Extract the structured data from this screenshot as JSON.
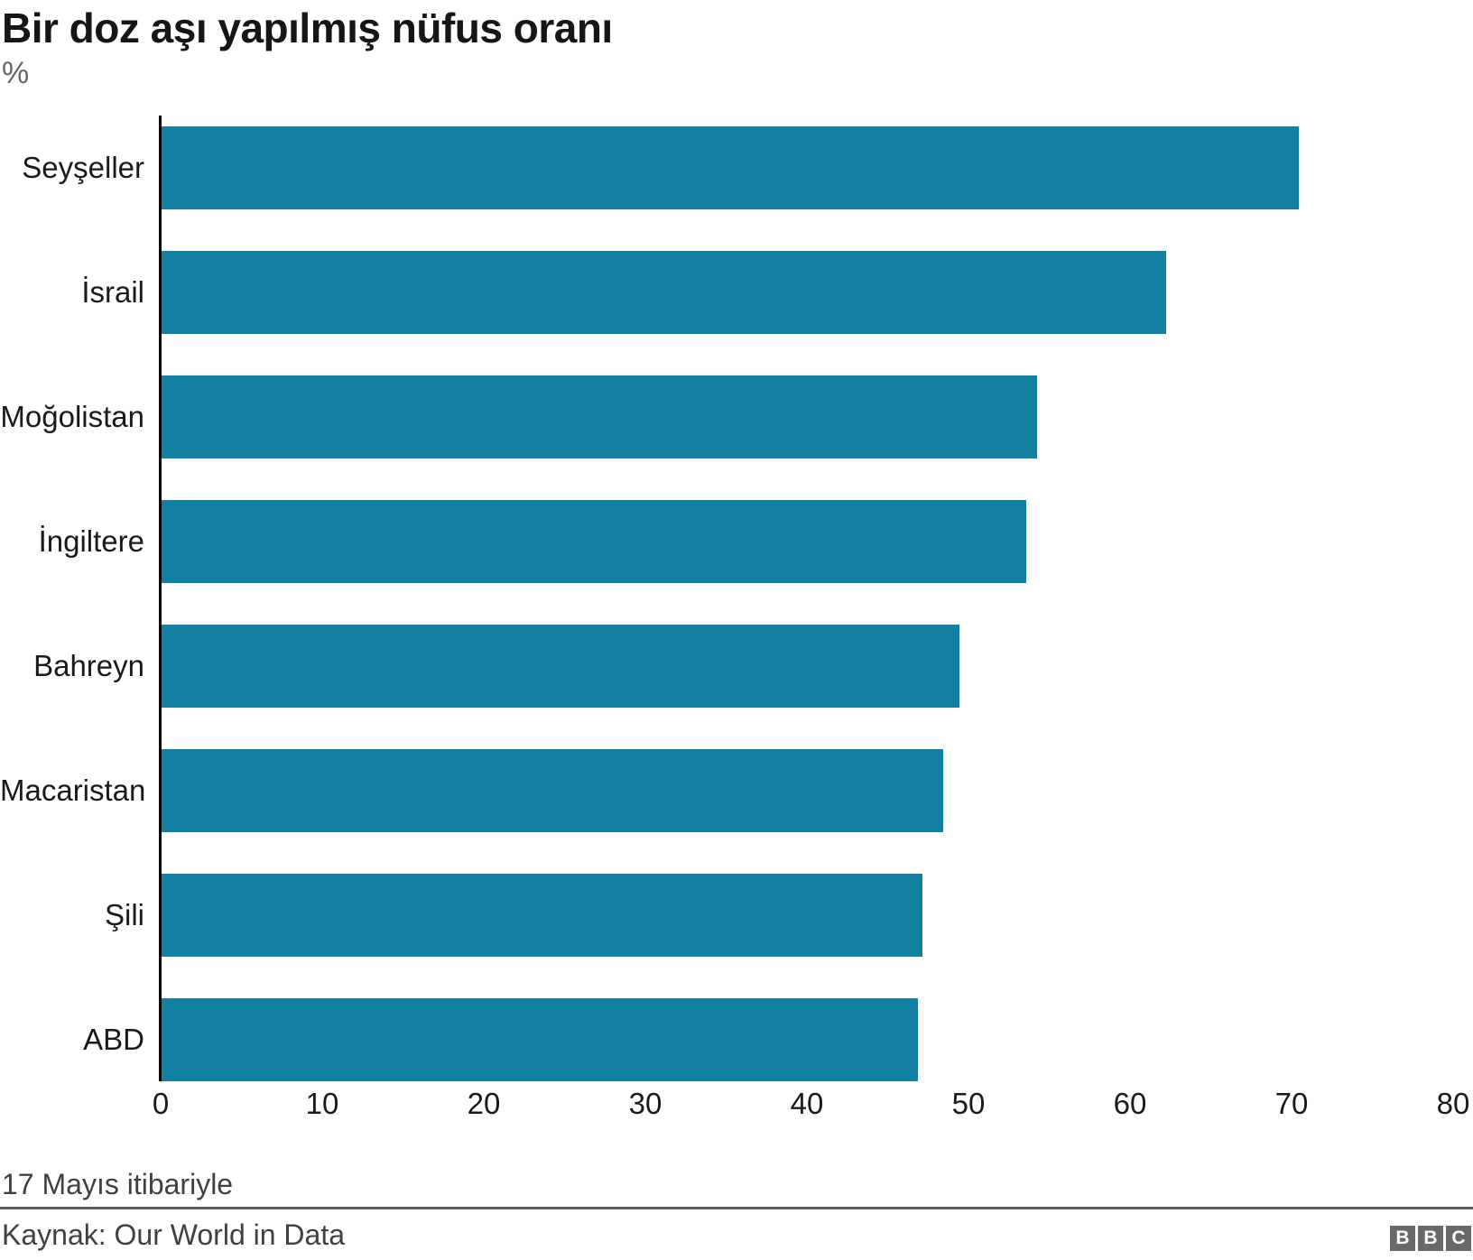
{
  "header": {
    "title": "Bir doz aşı yapılmış nüfus oranı",
    "subtitle": "%"
  },
  "chart_data": {
    "type": "bar",
    "orientation": "horizontal",
    "title": "Bir doz aşı yapılmış nüfus oranı",
    "xlabel": "%",
    "categories": [
      "Seyşeller",
      "İsrail",
      "Moğolistan",
      "İngiltere",
      "Bahreyn",
      "Macaristan",
      "Şili",
      "ABD"
    ],
    "values": [
      70.4,
      62.2,
      54.2,
      53.5,
      49.4,
      48.4,
      47.1,
      46.8
    ],
    "xlim": [
      0,
      80
    ],
    "xticks": [
      0,
      10,
      20,
      30,
      40,
      50,
      60,
      70,
      80
    ],
    "bar_color": "#1380A1",
    "grid": false,
    "legend": false
  },
  "footer": {
    "footnote": "17 Mayıs itibariyle",
    "source": "Kaynak: Our World in Data",
    "logo_letters": [
      "B",
      "B",
      "C"
    ]
  },
  "colors": {
    "bar": "#1380A1",
    "axis": "#000000",
    "title_text": "#161616",
    "muted_text": "#404040",
    "subtitle_text": "#666666",
    "divider": "#5c5c5c",
    "logo_bg": "#696969"
  }
}
